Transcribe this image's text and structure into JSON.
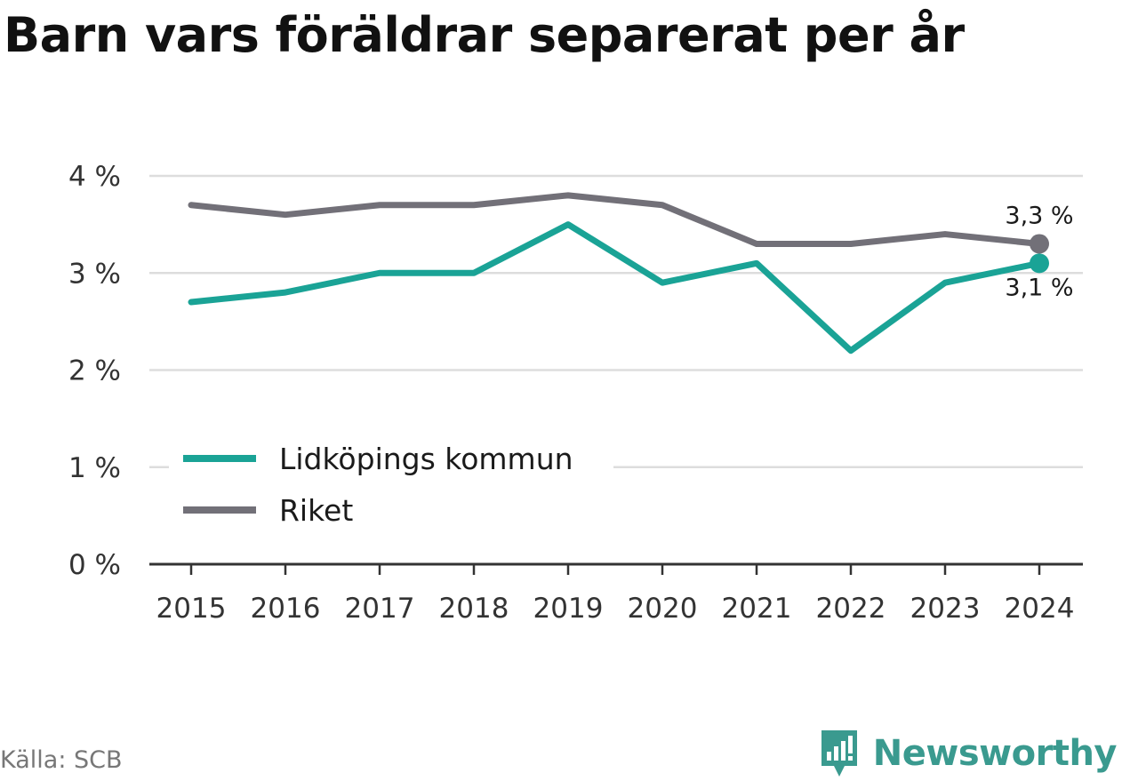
{
  "title": "Barn vars föräldrar separerat per år",
  "source": "Källa: SCB",
  "brand": "Newsworthy",
  "chart_data": {
    "type": "line",
    "title": "Barn vars föräldrar separerat per år",
    "x": [
      "2015",
      "2016",
      "2017",
      "2018",
      "2019",
      "2020",
      "2021",
      "2022",
      "2023",
      "2024"
    ],
    "ylim": [
      0,
      4
    ],
    "y_ticks": [
      "0 %",
      "1 %",
      "2 %",
      "3 %",
      "4 %"
    ],
    "grid": true,
    "legend_position": "bottom-left",
    "series": [
      {
        "name": "Lidköpings kommun",
        "color": "#1aa396",
        "values": [
          2.7,
          2.8,
          3.0,
          3.0,
          3.5,
          2.9,
          3.1,
          2.2,
          2.9,
          3.1
        ],
        "end_label": "3,1 %"
      },
      {
        "name": "Riket",
        "color": "#727078",
        "values": [
          3.7,
          3.6,
          3.7,
          3.7,
          3.8,
          3.7,
          3.3,
          3.3,
          3.4,
          3.3
        ],
        "end_label": "3,3 %"
      }
    ]
  }
}
